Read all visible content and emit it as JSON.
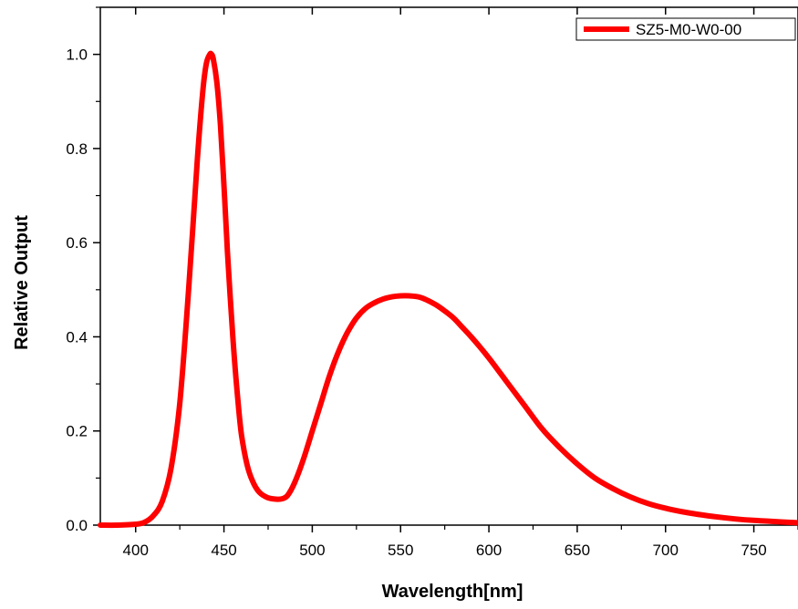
{
  "chart_data": {
    "type": "line",
    "title": "",
    "xlabel": "Wavelength[nm]",
    "ylabel": "Relative Output",
    "xlim": [
      380,
      775
    ],
    "ylim": [
      0,
      1.1
    ],
    "xticks": [
      400,
      450,
      500,
      550,
      600,
      650,
      700,
      750
    ],
    "xtick_labels": [
      "400",
      "450",
      "500",
      "550",
      "600",
      "650",
      "700",
      "750"
    ],
    "yticks": [
      0.0,
      0.2,
      0.4,
      0.6,
      0.8,
      1.0
    ],
    "ytick_labels": [
      "0.0",
      "0.2",
      "0.4",
      "0.6",
      "0.8",
      "1.0"
    ],
    "grid": false,
    "legend_position": "top-right",
    "series": [
      {
        "name": "SZ5-M0-W0-00",
        "color": "#ff0000",
        "x": [
          380,
          390,
          400,
          405,
          410,
          415,
          420,
          425,
          430,
          435,
          438,
          440,
          442,
          443,
          444,
          446,
          448,
          450,
          452,
          455,
          458,
          460,
          463,
          466,
          470,
          475,
          480,
          483,
          486,
          490,
          495,
          500,
          505,
          510,
          515,
          520,
          525,
          530,
          535,
          540,
          545,
          550,
          555,
          560,
          565,
          570,
          575,
          580,
          585,
          590,
          600,
          610,
          620,
          630,
          640,
          650,
          660,
          670,
          680,
          690,
          700,
          710,
          720,
          730,
          740,
          750,
          760,
          775
        ],
        "y": [
          0.0,
          0.0,
          0.002,
          0.006,
          0.02,
          0.05,
          0.12,
          0.26,
          0.5,
          0.78,
          0.92,
          0.98,
          1.0,
          1.0,
          0.99,
          0.94,
          0.85,
          0.72,
          0.58,
          0.4,
          0.26,
          0.19,
          0.13,
          0.095,
          0.07,
          0.058,
          0.055,
          0.056,
          0.063,
          0.09,
          0.14,
          0.2,
          0.26,
          0.32,
          0.37,
          0.41,
          0.44,
          0.46,
          0.472,
          0.48,
          0.485,
          0.487,
          0.487,
          0.485,
          0.478,
          0.468,
          0.455,
          0.44,
          0.42,
          0.4,
          0.355,
          0.305,
          0.255,
          0.205,
          0.165,
          0.13,
          0.1,
          0.078,
          0.06,
          0.046,
          0.036,
          0.028,
          0.022,
          0.017,
          0.013,
          0.01,
          0.008,
          0.005
        ]
      }
    ]
  }
}
